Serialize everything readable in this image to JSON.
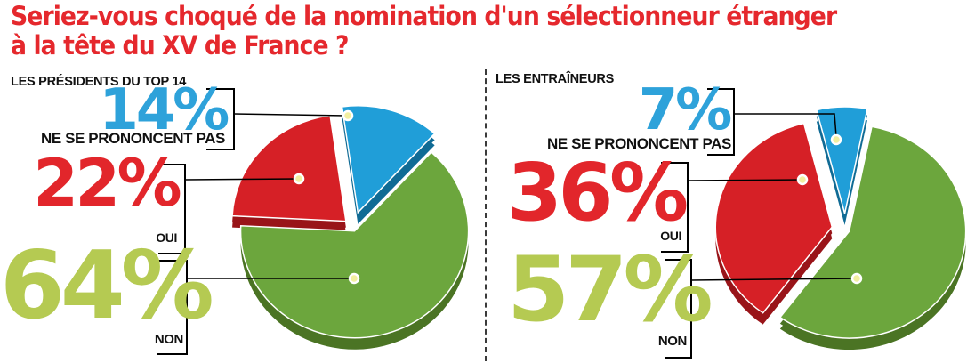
{
  "title": {
    "line1": "Seriez-vous choqué de la nomination d'un sélectionneur étranger",
    "line2": "à la tête du XV de France ?",
    "color": "#e5282d"
  },
  "chart_data": [
    {
      "type": "pie",
      "title": "LES PRÉSIDENTS DU TOP 14",
      "slices": [
        {
          "label": "NE SE PRONONCENT PAS",
          "value": 14,
          "value_label": "14%",
          "color": "#209ed8",
          "dark_color": "#106b95",
          "label_color": "#2ea2da"
        },
        {
          "label": "OUI",
          "value": 22,
          "value_label": "22%",
          "color": "#d62026",
          "dark_color": "#991419",
          "label_color": "#e2262b"
        },
        {
          "label": "NON",
          "value": 64,
          "value_label": "64%",
          "color": "#6ca63d",
          "dark_color": "#4b7424",
          "label_color": "#b5ca52"
        }
      ],
      "total": 100,
      "legend_position": "left-callouts",
      "style": "3d-exploded"
    },
    {
      "type": "pie",
      "title": "LES ENTRAÎNEURS",
      "slices": [
        {
          "label": "NE SE PRONONCENT PAS",
          "value": 7,
          "value_label": "7%",
          "color": "#209ed8",
          "dark_color": "#106b95",
          "label_color": "#2ea2da"
        },
        {
          "label": "OUI",
          "value": 36,
          "value_label": "36%",
          "color": "#d62026",
          "dark_color": "#991419",
          "label_color": "#e2262b"
        },
        {
          "label": "NON",
          "value": 57,
          "value_label": "57%",
          "color": "#6ca63d",
          "dark_color": "#4b7424",
          "label_color": "#b5ca52"
        }
      ],
      "total": 100,
      "legend_position": "left-callouts",
      "style": "3d-exploded"
    }
  ]
}
